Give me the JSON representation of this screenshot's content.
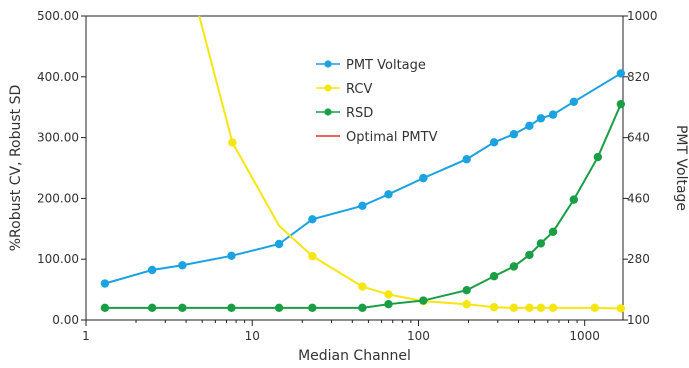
{
  "chart_data": {
    "type": "line",
    "title": "",
    "xlabel": "Median Channel",
    "ylabel": "%Robust CV, Robust SD",
    "y2label": "PMT Voltage",
    "x_scale": "log",
    "xlim": [
      1,
      1700
    ],
    "ylim": [
      0,
      500
    ],
    "y2lim": [
      100,
      1000
    ],
    "x_ticks": [
      1,
      10,
      100,
      1000
    ],
    "x_tick_labels": [
      "1",
      "10",
      "100",
      "1000"
    ],
    "y_ticks": [
      0,
      100,
      200,
      300,
      400,
      500
    ],
    "y_tick_labels": [
      "0.00",
      "100.00",
      "200.00",
      "300.00",
      "400.00",
      "500.00"
    ],
    "y2_ticks": [
      100,
      280,
      460,
      640,
      820,
      1000
    ],
    "y2_tick_labels": [
      "100",
      "280",
      "460",
      "640",
      "820",
      "1000"
    ],
    "grid": false,
    "legend_position": "top-center",
    "series": [
      {
        "name": "PMT Voltage",
        "color": "#1aa3e0",
        "axis": "right",
        "markers": true,
        "x": [
          1.3,
          2.5,
          3.8,
          7.5,
          14.5,
          23,
          46,
          66,
          107,
          195,
          285,
          375,
          465,
          545,
          645,
          860,
          1650
        ],
        "y": [
          208,
          248,
          262,
          290,
          325,
          398,
          438,
          472,
          520,
          576,
          626,
          650,
          675,
          697,
          708,
          746,
          830
        ]
      },
      {
        "name": "RCV",
        "color": "#f5e612",
        "axis": "left",
        "markers": true,
        "x": [
          4.8,
          7.6,
          14.5,
          23,
          46,
          66,
          107,
          195,
          285,
          375,
          465,
          545,
          645,
          1150,
          1650
        ],
        "y": [
          500,
          292,
          155,
          105,
          55,
          42,
          31,
          26,
          21,
          20,
          20,
          20,
          20,
          20,
          19
        ],
        "marker_indices": [
          1,
          3,
          4,
          5,
          6,
          7,
          8,
          9,
          10,
          11,
          12,
          13,
          14
        ]
      },
      {
        "name": "RSD",
        "color": "#1a9e45",
        "axis": "left",
        "markers": true,
        "x": [
          1.3,
          2.5,
          3.8,
          7.5,
          14.5,
          23,
          46,
          66,
          107,
          195,
          285,
          375,
          465,
          545,
          645,
          860,
          1200,
          1650
        ],
        "y": [
          20,
          20,
          20,
          20,
          20,
          20,
          20,
          26,
          32,
          49,
          72,
          88,
          107,
          126,
          145,
          198,
          268,
          355
        ]
      },
      {
        "name": "Optimal PMTV",
        "color": "#e8312f",
        "axis": "left",
        "markers": false,
        "x": [],
        "y": []
      }
    ]
  }
}
